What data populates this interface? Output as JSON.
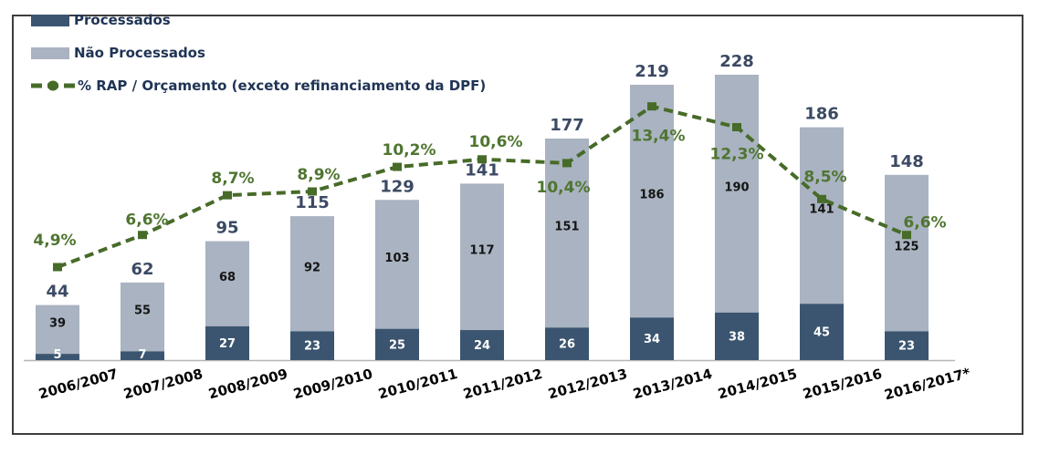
{
  "legend": {
    "items": [
      {
        "label": "Processados",
        "swatch": "bar",
        "color": "#3b5570"
      },
      {
        "label": "Não Processados",
        "swatch": "bar",
        "color": "#a9b3c1"
      },
      {
        "label": "% RAP / Orçamento (exceto refinanciamento da DPF)",
        "swatch": "dashed-line",
        "color": "#476b28"
      }
    ]
  },
  "chart_data": {
    "type": "combo-stacked-bar-line",
    "categories": [
      "2006/2007",
      "2007/2008",
      "2008/2009",
      "2009/2010",
      "2010/2011",
      "2011/2012",
      "2012/2013",
      "2013/2014",
      "2014/2015",
      "2015/2016",
      "2016/2017*"
    ],
    "series": [
      {
        "name": "Processados",
        "type": "bar-stack-bottom",
        "color": "#3b5570",
        "label_color": "#ffffff",
        "values": [
          5,
          7,
          27,
          23,
          25,
          24,
          26,
          34,
          38,
          45,
          23
        ]
      },
      {
        "name": "Não Processados",
        "type": "bar-stack-top",
        "color": "#a9b3c1",
        "label_color": "#141414",
        "values": [
          39,
          55,
          68,
          92,
          103,
          117,
          151,
          186,
          190,
          141,
          125
        ]
      },
      {
        "name": "% RAP / Orçamento (exceto refinanciamento da DPF)",
        "type": "line-dashed-with-square-markers",
        "color": "#476b28",
        "values": [
          4.9,
          6.6,
          8.7,
          8.9,
          10.2,
          10.6,
          10.4,
          13.4,
          12.3,
          8.5,
          6.6
        ]
      }
    ],
    "totals": [
      44,
      62,
      95,
      115,
      129,
      141,
      177,
      219,
      228,
      186,
      148
    ],
    "pct_labels": [
      "4,9%",
      "6,6%",
      "8,7%",
      "8,9%",
      "10,2%",
      "10,6%",
      "10,4%",
      "13,4%",
      "12,3%",
      "8,5%",
      "6,6%"
    ],
    "title": "",
    "xlabel": "",
    "ylabel": "",
    "layout": {
      "legend_position": "top-left",
      "grid": false,
      "bar_value_labels": "inside-center",
      "total_labels": "above-bars",
      "pct_labels_follow_line": true,
      "x_label_rotation_deg": -15,
      "axis_line_color": "#b5b5b5",
      "total_label_color": "#3b4a63",
      "pct_label_color": "#4f7530",
      "category_label_color": "#000000"
    }
  }
}
